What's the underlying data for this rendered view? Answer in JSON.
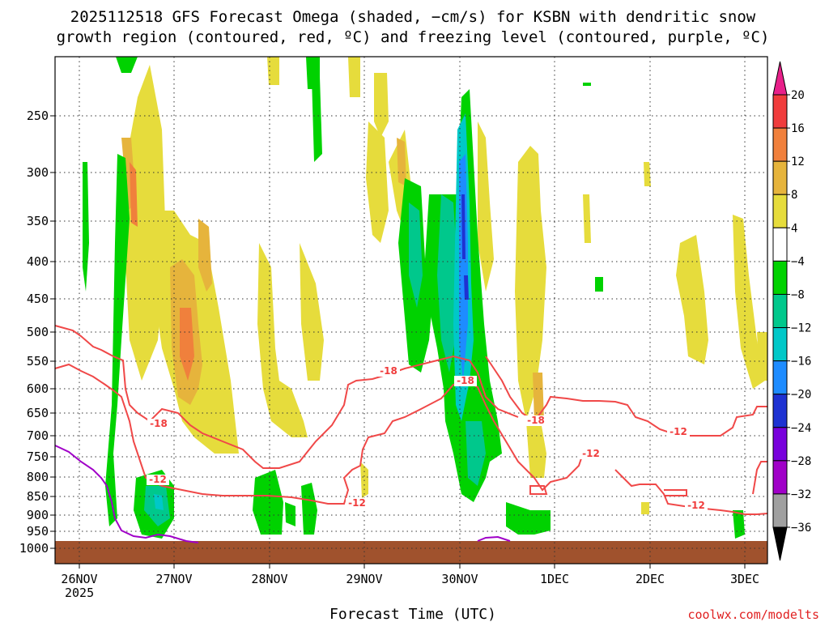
{
  "chart_data": {
    "type": "heatmap",
    "title_line1": "2025112518 GFS Forecast Omega (shaded, −cm/s) for KSBN with dendritic snow",
    "title_line2": "growth region (contoured, red, ºC) and freezing level (contoured, purple, ºC)",
    "xlabel": "Forecast Time (UTC)",
    "credit": "coolwx.com/modelts",
    "y_ticks": [
      "250",
      "300",
      "350",
      "400",
      "450",
      "500",
      "550",
      "600",
      "650",
      "700",
      "750",
      "800",
      "850",
      "900",
      "950",
      "1000"
    ],
    "x_ticks": [
      "26NOV",
      "27NOV",
      "28NOV",
      "29NOV",
      "30NOV",
      "1DEC",
      "2DEC",
      "3DEC"
    ],
    "x_year": "2025",
    "colorbar": {
      "labels": [
        "20",
        "16",
        "12",
        "8",
        "4",
        "−4",
        "−8",
        "−12",
        "−16",
        "−20",
        "−24",
        "−28",
        "−32",
        "−36"
      ],
      "colors": [
        "#e8208a",
        "#f03c3c",
        "#f0803c",
        "#e6b43c",
        "#e6dc3c",
        "#ffffff",
        "#00d200",
        "#00c88c",
        "#00c8c8",
        "#1e8cff",
        "#1e32d2",
        "#7800dc",
        "#a000c8",
        "#a0a0a0",
        "#000000"
      ]
    },
    "contour_labels": [
      "-18",
      "-12",
      "-12",
      "-18",
      "-18",
      "-12",
      "-12",
      "-18",
      "-12"
    ],
    "units": "−cm/s"
  }
}
